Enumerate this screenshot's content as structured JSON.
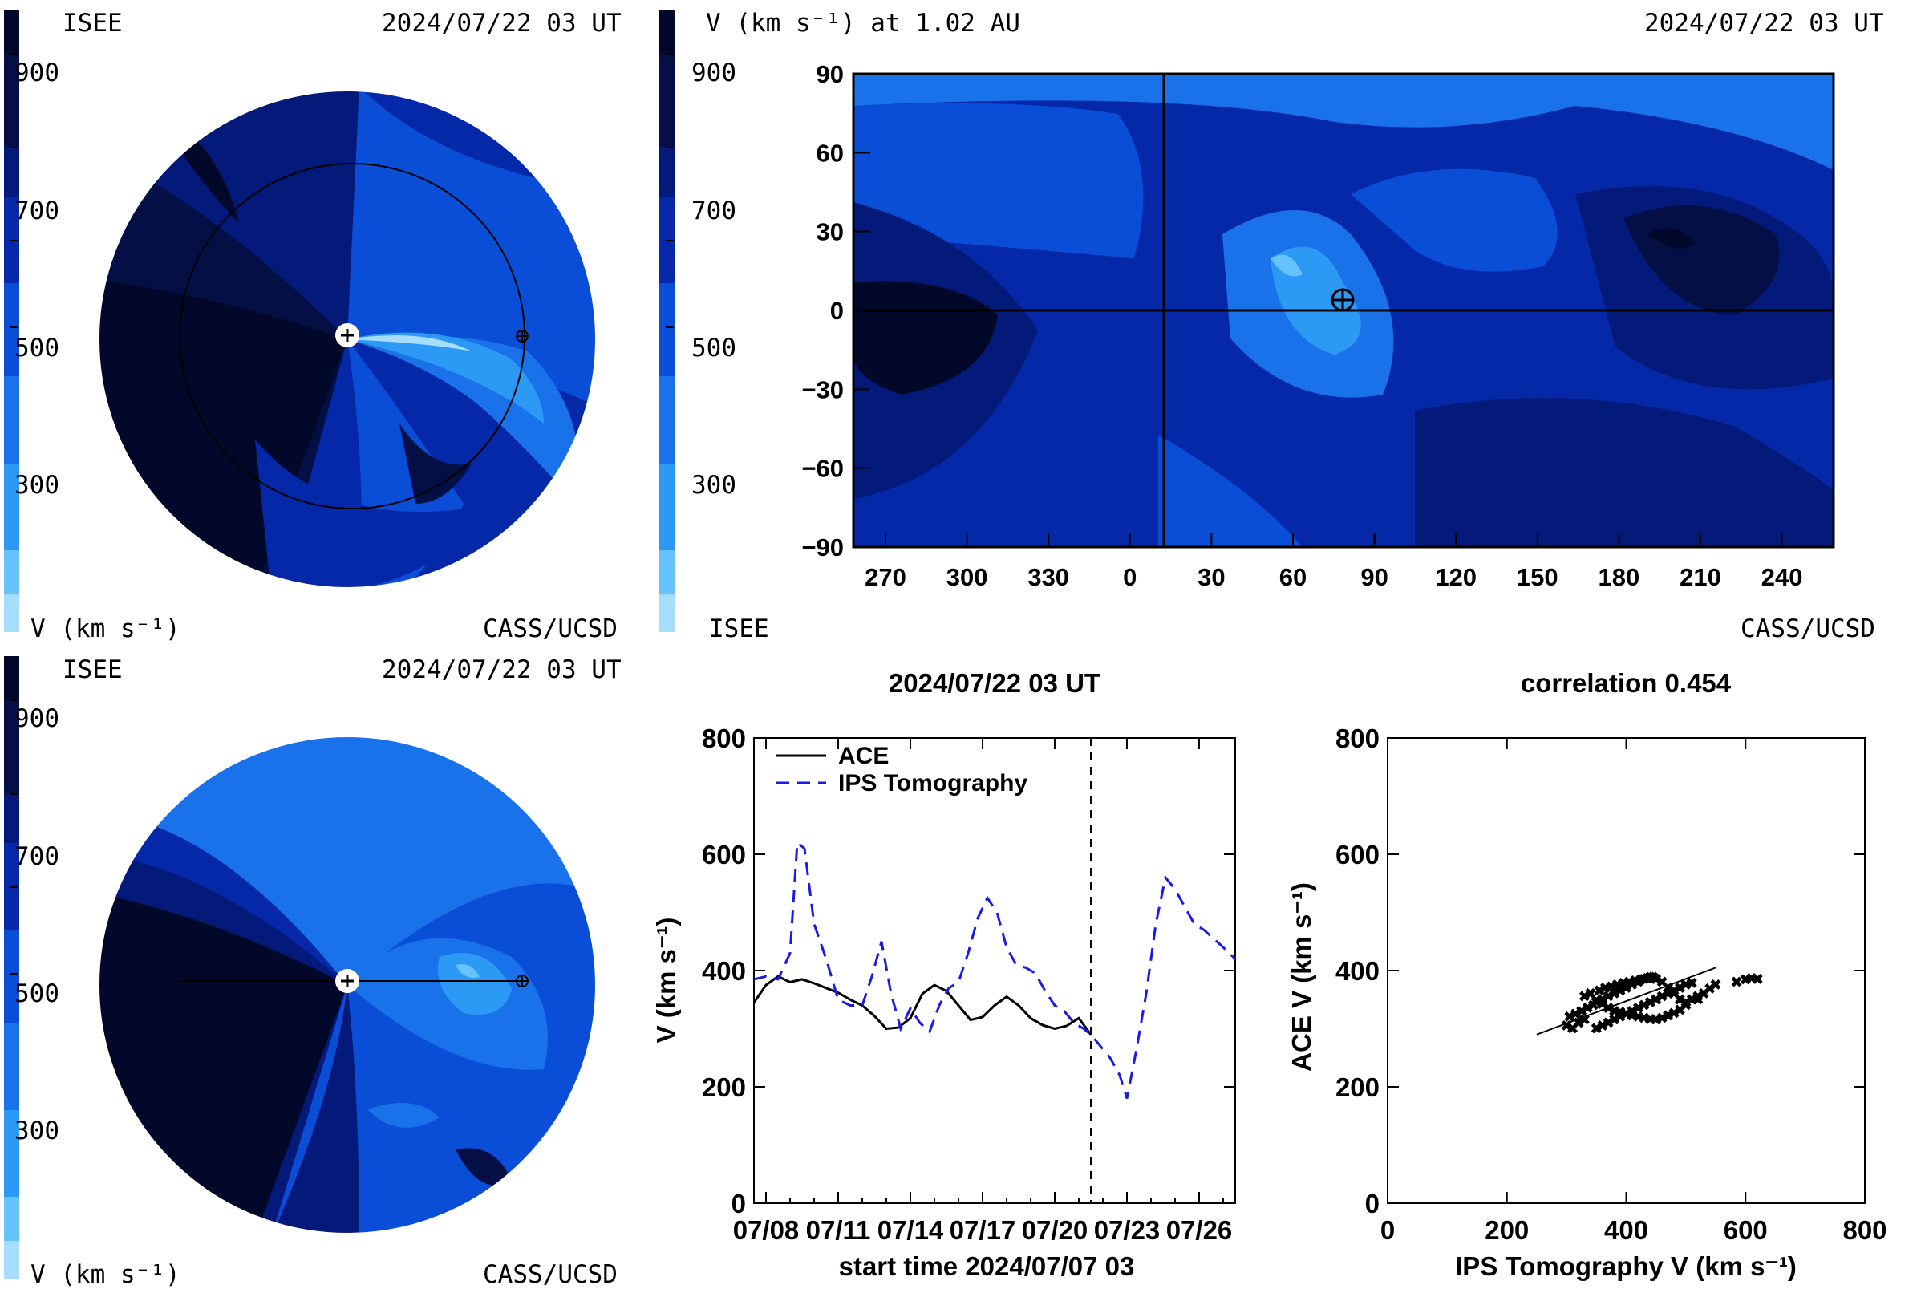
{
  "top_left_panel": {
    "org": "ISEE",
    "datetime": "2024/07/22 03 UT",
    "colorbar_ticks": [
      "900",
      "700",
      "500",
      "300"
    ],
    "colorbar_label": "V (km s⁻¹)",
    "credit": "CASS/UCSD"
  },
  "top_right_panel": {
    "colorbar_title": "V (km s⁻¹) at 1.02 AU",
    "colorbar_ticks": [
      "900",
      "700",
      "500",
      "300"
    ],
    "datetime": "2024/07/22 03 UT",
    "org": "ISEE",
    "credit": "CASS/UCSD",
    "y_ticks": [
      "90",
      "60",
      "30",
      "0",
      "−30",
      "−60",
      "−90"
    ],
    "x_ticks": [
      "270",
      "300",
      "330",
      "0",
      "30",
      "60",
      "90",
      "120",
      "150",
      "180",
      "210",
      "240"
    ]
  },
  "bottom_left_panel": {
    "org": "ISEE",
    "datetime": "2024/07/22 03 UT",
    "colorbar_ticks": [
      "900",
      "700",
      "500",
      "300"
    ],
    "colorbar_label": "V (km s⁻¹)",
    "credit": "CASS/UCSD"
  },
  "colors": {
    "v_900_plus": "#02082a",
    "v_800": "#030f45",
    "v_700": "#041a7a",
    "v_600": "#0528a8",
    "v_500": "#0a4ed8",
    "v_400": "#1a72ea",
    "v_300": "#2c9af5",
    "v_200": "#66c2fb",
    "v_100": "#a6dcfd",
    "tomography_line": "#1a1ae6",
    "ace_line": "#000000"
  },
  "chart_data": [
    {
      "type": "line",
      "title": "2024/07/22 03 UT",
      "xlabel": "start time 2024/07/07 03",
      "ylabel": "V (km s⁻¹)",
      "xlim": [
        0.5,
        20.5
      ],
      "ylim": [
        0,
        800
      ],
      "x_tick_labels": [
        "07/08",
        "07/11",
        "07/14",
        "07/17",
        "07/20",
        "07/23",
        "07/26"
      ],
      "x_tick_values": [
        1,
        4,
        7,
        10,
        13,
        16,
        19
      ],
      "y_ticks": [
        0,
        200,
        400,
        600,
        800
      ],
      "vline_x": 14.5,
      "legend_placement": "top-left",
      "series": [
        {
          "name": "ACE",
          "x": [
            0.5,
            1.0,
            1.5,
            2.0,
            2.5,
            3.0,
            3.5,
            4.0,
            4.5,
            5.0,
            5.5,
            6.0,
            6.5,
            7.0,
            7.5,
            8.0,
            8.5,
            9.0,
            9.5,
            10.0,
            10.5,
            11.0,
            11.5,
            12.0,
            12.5,
            13.0,
            13.5,
            14.0,
            14.5
          ],
          "y": [
            345,
            375,
            390,
            380,
            385,
            378,
            370,
            362,
            350,
            340,
            322,
            300,
            302,
            318,
            360,
            375,
            365,
            340,
            315,
            320,
            340,
            355,
            340,
            318,
            306,
            300,
            305,
            318,
            290
          ]
        },
        {
          "name": "IPS Tomography",
          "x": [
            0.5,
            1.0,
            1.5,
            2.0,
            2.3,
            2.6,
            3.0,
            3.5,
            4.0,
            4.5,
            5.0,
            5.4,
            5.8,
            6.2,
            6.6,
            7.0,
            7.4,
            7.8,
            8.2,
            8.6,
            9.0,
            9.4,
            9.8,
            10.2,
            10.6,
            11.0,
            11.4,
            11.8,
            12.2,
            12.6,
            13.0,
            13.4,
            13.8,
            14.2,
            14.5,
            14.9,
            15.3,
            15.7,
            16.0,
            16.4,
            16.8,
            17.2,
            17.6,
            18.0,
            18.4,
            18.8,
            19.2,
            19.6,
            20.0,
            20.5
          ],
          "y": [
            385,
            390,
            385,
            430,
            620,
            610,
            480,
            420,
            350,
            340,
            340,
            390,
            450,
            360,
            300,
            335,
            310,
            295,
            340,
            370,
            380,
            430,
            490,
            525,
            500,
            440,
            410,
            405,
            395,
            365,
            340,
            330,
            310,
            300,
            290,
            270,
            250,
            220,
            180,
            265,
            360,
            480,
            560,
            540,
            510,
            480,
            470,
            455,
            440,
            420
          ]
        }
      ]
    },
    {
      "type": "scatter",
      "title": "correlation 0.454",
      "xlabel": "IPS Tomography V (km s⁻¹)",
      "ylabel": "ACE V (km s⁻¹)",
      "xlim": [
        0,
        800
      ],
      "ylim": [
        0,
        800
      ],
      "x_ticks": [
        0,
        200,
        400,
        600,
        800
      ],
      "y_ticks": [
        0,
        200,
        400,
        600,
        800
      ],
      "points": {
        "x": [
          300,
          310,
          320,
          330,
          305,
          315,
          325,
          335,
          345,
          350,
          360,
          370,
          380,
          390,
          400,
          410,
          420,
          430,
          440,
          450,
          460,
          470,
          480,
          490,
          500,
          510,
          520,
          340,
          355,
          365,
          375,
          385,
          395,
          405,
          415,
          425,
          435,
          445,
          330,
          340,
          350,
          360,
          370,
          380,
          390,
          400,
          410,
          420,
          430,
          440,
          450,
          460,
          470,
          480,
          490,
          500,
          520,
          530,
          540,
          550,
          585,
          600,
          610,
          620,
          350,
          360,
          370,
          380,
          390,
          400,
          410,
          420,
          430,
          440,
          450,
          460,
          470,
          480,
          490,
          500,
          510
        ],
        "y": [
          305,
          300,
          310,
          315,
          320,
          325,
          330,
          335,
          340,
          345,
          350,
          355,
          360,
          365,
          370,
          375,
          380,
          385,
          388,
          385,
          380,
          370,
          360,
          350,
          345,
          350,
          355,
          360,
          365,
          370,
          372,
          375,
          378,
          380,
          382,
          384,
          386,
          388,
          355,
          360,
          348,
          342,
          335,
          330,
          328,
          325,
          322,
          320,
          318,
          316,
          315,
          318,
          322,
          326,
          332,
          340,
          350,
          360,
          368,
          375,
          380,
          384,
          386,
          385,
          300,
          305,
          310,
          315,
          320,
          325,
          330,
          335,
          340,
          345,
          350,
          355,
          360,
          365,
          370,
          375,
          378
        ]
      },
      "fit_line": {
        "x": [
          250,
          550
        ],
        "y": [
          290,
          405
        ]
      }
    }
  ]
}
